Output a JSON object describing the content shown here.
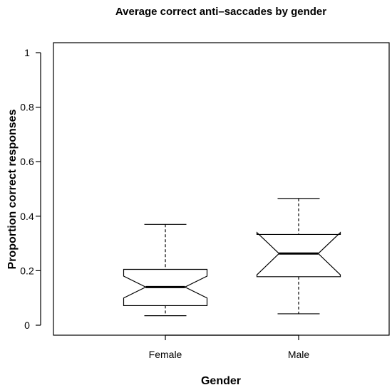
{
  "chart_data": {
    "type": "box",
    "title": "Average correct anti–saccades by gender",
    "xlabel": "Gender",
    "ylabel": "Proportion correct responses",
    "ylim": [
      0,
      1
    ],
    "yticks": [
      "0",
      "0.2",
      "0.4",
      "0.6",
      "0.8",
      "1"
    ],
    "notched": true,
    "categories": [
      "Female",
      "Male"
    ],
    "boxes": [
      {
        "category": "Female",
        "whisker_low": 0.035,
        "q1": 0.072,
        "median": 0.14,
        "q3": 0.205,
        "whisker_high": 0.37,
        "notch_low": 0.1,
        "notch_high": 0.18
      },
      {
        "category": "Male",
        "whisker_low": 0.042,
        "q1": 0.178,
        "median": 0.263,
        "q3": 0.333,
        "whisker_high": 0.465,
        "notch_low": 0.185,
        "notch_high": 0.34
      }
    ]
  }
}
